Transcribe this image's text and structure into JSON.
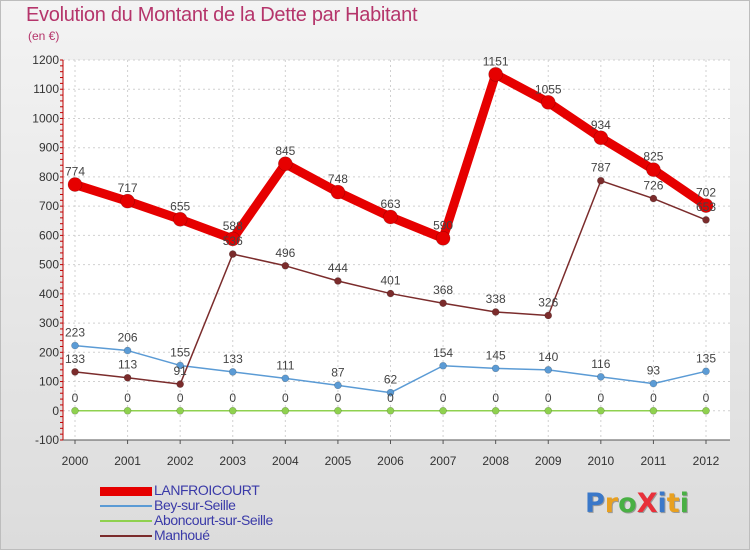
{
  "title": "Evolution du Montant de la Dette par Habitant",
  "subtitle": "(en €)",
  "logo": {
    "text": "ProXiti",
    "colors": [
      "#3a78c9",
      "#e8a020",
      "#49b044",
      "#e8303a",
      "#3a78c9",
      "#e8a020",
      "#49b044"
    ]
  },
  "chart_data": {
    "type": "line",
    "categories": [
      "2000",
      "2001",
      "2002",
      "2003",
      "2004",
      "2005",
      "2006",
      "2007",
      "2008",
      "2009",
      "2010",
      "2011",
      "2012"
    ],
    "ylim": [
      -100,
      1200
    ],
    "yticks": [
      -100,
      0,
      100,
      200,
      300,
      400,
      500,
      600,
      700,
      800,
      900,
      1000,
      1100,
      1200
    ],
    "grid": true,
    "legend_position": "bottom-left",
    "series": [
      {
        "name": "LANFROICOURT",
        "color": "#e60000",
        "width": 9,
        "marker": 7,
        "values": [
          774,
          717,
          655,
          588,
          845,
          748,
          663,
          590,
          1151,
          1055,
          934,
          825,
          702
        ]
      },
      {
        "name": "Bey-sur-Seille",
        "color": "#5b9bd5",
        "width": 1.5,
        "marker": 3.5,
        "values": [
          223,
          206,
          155,
          133,
          111,
          87,
          62,
          154,
          145,
          140,
          116,
          93,
          135
        ]
      },
      {
        "name": "Aboncourt-sur-Seille",
        "color": "#8fd14f",
        "width": 1.5,
        "marker": 3.5,
        "values": [
          0,
          0,
          0,
          0,
          0,
          0,
          0,
          0,
          0,
          0,
          0,
          0,
          0
        ]
      },
      {
        "name": "Manhoué",
        "color": "#7b2c2c",
        "width": 1.5,
        "marker": 3.5,
        "values": [
          133,
          113,
          91,
          536,
          496,
          444,
          401,
          368,
          338,
          326,
          787,
          726,
          653
        ]
      }
    ]
  }
}
